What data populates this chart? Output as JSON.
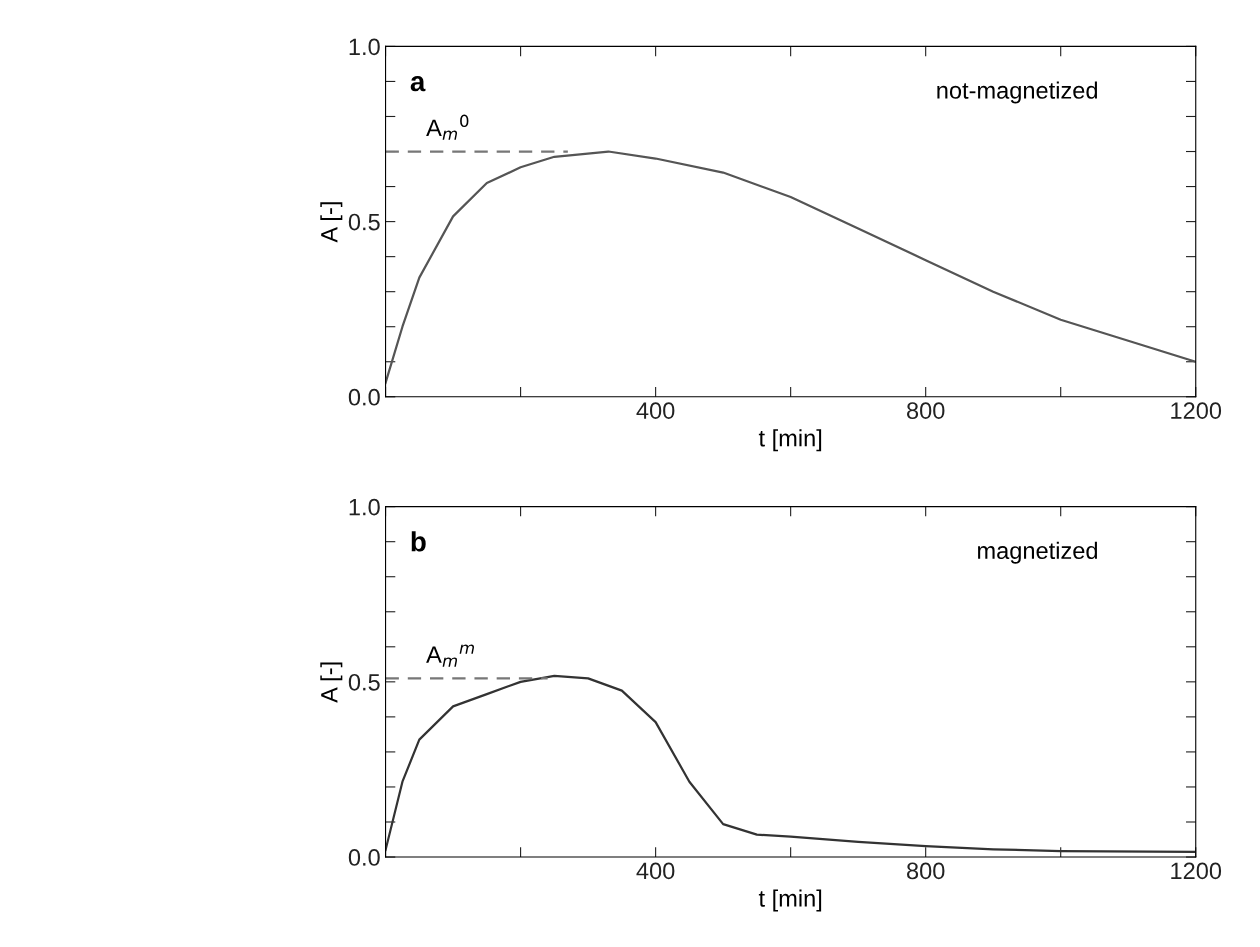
{
  "chart_data": [
    {
      "type": "line",
      "xlabel": "t [min]",
      "ylabel": "A [-]",
      "annotations": [
        "a",
        "not-magnetized",
        {
          "text": "A$_{m}$$^{0}$",
          "x": 60,
          "y": 0.7
        }
      ],
      "series": [
        {
          "color": "#555555",
          "line_style": "solid",
          "x": [
            0,
            25,
            50,
            100,
            150,
            200,
            250,
            330,
            400,
            500,
            600,
            700,
            800,
            900,
            1000,
            1100,
            1200
          ],
          "values": [
            0.04,
            0.2,
            0.34,
            0.515,
            0.61,
            0.655,
            0.685,
            0.7,
            0.68,
            0.64,
            0.57,
            0.48,
            0.39,
            0.3,
            0.22,
            0.16,
            0.1
          ]
        },
        {
          "color": "#777777",
          "line_style": "dashed",
          "x": [
            0,
            270
          ],
          "values": [
            0.7,
            0.7
          ]
        }
      ],
      "xlim": [
        0,
        1200
      ],
      "ylim": [
        0,
        1
      ],
      "xticks": [
        {
          "value": 0,
          "label": null
        },
        {
          "value": 200,
          "label": null
        },
        400,
        {
          "value": 600,
          "label": null
        },
        800,
        {
          "value": 1000,
          "label": null
        },
        1200
      ],
      "yticks": [
        {
          "value": 0,
          "label": "0.0"
        },
        {
          "value": 0.1,
          "label": null
        },
        {
          "value": 0.2,
          "label": null
        },
        {
          "value": 0.3,
          "label": null
        },
        {
          "value": 0.4,
          "label": null
        },
        0.5,
        {
          "value": 0.6,
          "label": null
        },
        {
          "value": 0.7,
          "label": null
        },
        {
          "value": 0.8,
          "label": null
        },
        {
          "value": 0.9,
          "label": null
        },
        {
          "value": 1,
          "label": "1.0"
        }
      ]
    },
    {
      "type": "line",
      "xlabel": "t [min]",
      "ylabel": "A [-]",
      "annotations": [
        "b",
        "magnetized",
        {
          "text": "A$_{m}$$^{m}$",
          "x": 60,
          "y": 0.51
        }
      ],
      "series": [
        {
          "color": "#333333",
          "line_style": "solid",
          "x": [
            0,
            25,
            50,
            100,
            150,
            200,
            250,
            300,
            350,
            400,
            450,
            500,
            550,
            600,
            700,
            800,
            900,
            1000,
            1200
          ],
          "values": [
            0.02,
            0.215,
            0.335,
            0.43,
            0.465,
            0.5,
            0.517,
            0.51,
            0.475,
            0.385,
            0.215,
            0.094,
            0.064,
            0.058,
            0.043,
            0.031,
            0.022,
            0.017,
            0.015
          ]
        },
        {
          "color": "#777777",
          "line_style": "dashed",
          "x": [
            0,
            240
          ],
          "values": [
            0.51,
            0.51
          ]
        }
      ],
      "xlim": [
        0,
        1200
      ],
      "ylim": [
        0,
        1
      ],
      "xticks": [
        {
          "value": 0,
          "label": null
        },
        {
          "value": 200,
          "label": null
        },
        400,
        {
          "value": 600,
          "label": null
        },
        800,
        {
          "value": 1000,
          "label": null
        },
        1200
      ],
      "yticks": [
        {
          "value": 0,
          "label": "0.0"
        },
        {
          "value": 0.1,
          "label": null
        },
        {
          "value": 0.2,
          "label": null
        },
        {
          "value": 0.3,
          "label": null
        },
        {
          "value": 0.4,
          "label": null
        },
        0.5,
        {
          "value": 0.6,
          "label": null
        },
        {
          "value": 0.7,
          "label": null
        },
        {
          "value": 0.8,
          "label": null
        },
        {
          "value": 0.9,
          "label": null
        },
        {
          "value": 1,
          "label": "1.0"
        }
      ]
    }
  ]
}
